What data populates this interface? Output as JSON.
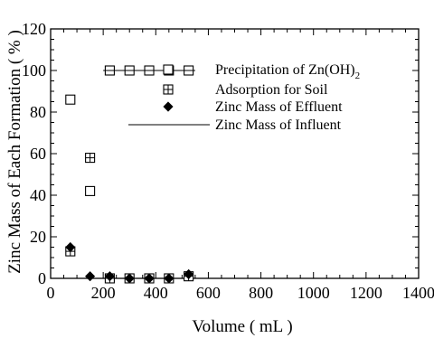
{
  "chart_data": {
    "type": "scatter",
    "title": "",
    "xlabel": "Volume ( mL )",
    "ylabel": "Zinc Mass of Each Formation ( % )",
    "xlim": [
      0,
      1400
    ],
    "ylim": [
      0,
      120
    ],
    "xticks": [
      "0",
      "200",
      "400",
      "600",
      "800",
      "1000",
      "1200",
      "1400"
    ],
    "yticks": [
      "0",
      "20",
      "40",
      "60",
      "80",
      "100",
      "120"
    ],
    "grid": false,
    "legend_position": "center-right",
    "series": [
      {
        "name": "Precipitation of Zn(OH)",
        "name_subscript": "2",
        "marker": "open-square",
        "x": [
          75,
          150,
          225,
          300,
          375,
          450,
          525
        ],
        "y": [
          86,
          42,
          100,
          100,
          100,
          100,
          100
        ]
      },
      {
        "name": "Adsorption for Soil",
        "marker": "crossed-square",
        "x": [
          75,
          150,
          225,
          300,
          375,
          450,
          525
        ],
        "y": [
          13,
          58,
          0,
          0,
          0,
          0,
          1
        ]
      },
      {
        "name": "Zinc Mass of Effluent",
        "marker": "filled-diamond",
        "x": [
          75,
          150,
          225,
          300,
          375,
          450,
          525
        ],
        "y": [
          15,
          1,
          1,
          0,
          0,
          0,
          2
        ]
      },
      {
        "name": "Zinc Mass of Influent",
        "marker": "line",
        "x": [
          200,
          550
        ],
        "y": [
          100,
          100
        ]
      }
    ]
  }
}
